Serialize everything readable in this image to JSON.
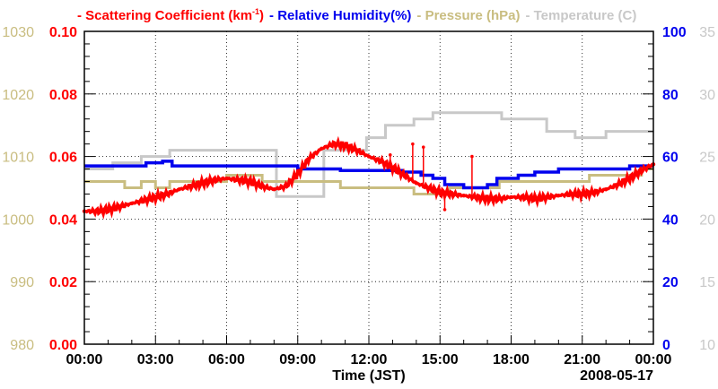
{
  "chart_data": {
    "type": "line",
    "title": "",
    "xlabel": "Time (JST)",
    "date_label": "2008-05-17",
    "x_ticks": [
      "00:00",
      "03:00",
      "06:00",
      "09:00",
      "12:00",
      "15:00",
      "18:00",
      "21:00",
      "00:00"
    ],
    "xlim_hours": [
      0,
      24
    ],
    "grid": true,
    "legend_position": "top",
    "axes": {
      "pressure": {
        "label": "Pressure (hPa)",
        "side": "left-outer",
        "range": [
          980,
          1030
        ],
        "ticks": [
          "980",
          "990",
          "1000",
          "1010",
          "1020",
          "1030"
        ],
        "color": "#c9bd80"
      },
      "scattering": {
        "label": "Scattering Coefficient (km-1)",
        "side": "left-inner",
        "range": [
          0,
          0.1
        ],
        "ticks": [
          "0.00",
          "0.02",
          "0.04",
          "0.06",
          "0.08",
          "0.10"
        ],
        "color": "#ff0000"
      },
      "humidity": {
        "label": "Relative Humidity(%)",
        "side": "right-inner",
        "range": [
          0,
          100
        ],
        "ticks": [
          "0",
          "20",
          "40",
          "60",
          "80",
          "100"
        ],
        "color": "#0000ee"
      },
      "temperature": {
        "label": "Temperature (C)",
        "side": "right-outer",
        "range": [
          10,
          35
        ],
        "ticks": [
          "10",
          "15",
          "20",
          "25",
          "30",
          "35"
        ],
        "color": "#c8c8c8"
      }
    },
    "series": [
      {
        "name": "Scattering Coefficient",
        "axis": "scattering",
        "color": "#ff0000",
        "style": "line-markers",
        "x": [
          0,
          0.5,
          1,
          1.5,
          2,
          2.5,
          3,
          3.5,
          4,
          4.5,
          5,
          5.5,
          6,
          6.5,
          7,
          7.5,
          8,
          8.5,
          9,
          9.5,
          10,
          10.5,
          11,
          11.5,
          12,
          12.5,
          13,
          13.5,
          14,
          14.5,
          15,
          15.5,
          16,
          16.5,
          17,
          17.5,
          18,
          18.5,
          19,
          19.5,
          20,
          20.5,
          21,
          21.5,
          22,
          22.5,
          23,
          23.5,
          24
        ],
        "values": [
          0.0425,
          0.0425,
          0.043,
          0.044,
          0.045,
          0.046,
          0.047,
          0.048,
          0.0495,
          0.0505,
          0.0515,
          0.0525,
          0.053,
          0.0525,
          0.052,
          0.0505,
          0.0495,
          0.0505,
          0.0545,
          0.0595,
          0.0625,
          0.064,
          0.0635,
          0.062,
          0.06,
          0.0585,
          0.0565,
          0.054,
          0.0515,
          0.05,
          0.0485,
          0.048,
          0.0475,
          0.047,
          0.0465,
          0.0465,
          0.047,
          0.047,
          0.0465,
          0.047,
          0.0475,
          0.048,
          0.048,
          0.0485,
          0.0495,
          0.051,
          0.053,
          0.0555,
          0.0575
        ],
        "spikes": [
          {
            "x": 12.9,
            "value": 0.0605
          },
          {
            "x": 13.85,
            "value": 0.064
          },
          {
            "x": 14.3,
            "value": 0.063
          },
          {
            "x": 16.35,
            "value": 0.06
          },
          {
            "x": 15.2,
            "value": 0.043
          }
        ]
      },
      {
        "name": "Relative Humidity",
        "axis": "humidity",
        "color": "#0000ee",
        "style": "step",
        "x": [
          0,
          2.6,
          3.3,
          3.7,
          9.0,
          10.8,
          12.6,
          13.4,
          14.2,
          14.7,
          15.2,
          16.0,
          17.0,
          17.4,
          18.3,
          19.0,
          20.0,
          23.0,
          24
        ],
        "values": [
          57,
          58,
          58.5,
          57,
          56,
          55.5,
          55.5,
          55,
          54,
          53,
          51,
          50,
          51,
          53,
          54,
          55,
          56,
          57,
          57
        ]
      },
      {
        "name": "Pressure",
        "axis": "pressure",
        "color": "#c9bd80",
        "style": "step",
        "x": [
          0,
          1.2,
          1.7,
          2.4,
          3.0,
          3.6,
          4.5,
          6.0,
          7.5,
          8.7,
          10.8,
          11.4,
          12.2,
          13.2,
          13.9,
          14.8,
          15.4,
          16.6,
          17.5,
          18.3,
          19.8,
          21.3,
          22.1,
          23.5,
          24
        ],
        "values": [
          1006,
          1006,
          1005,
          1006,
          1005,
          1006,
          1006,
          1007,
          1006,
          1006,
          1005,
          1005,
          1005,
          1005,
          1004,
          1004,
          1005,
          1005,
          1006,
          1006,
          1006,
          1007,
          1007,
          1008,
          1008
        ]
      },
      {
        "name": "Temperature",
        "axis": "temperature",
        "color": "#c8c8c8",
        "style": "step",
        "x": [
          0,
          1.2,
          2.4,
          3.6,
          8.1,
          10.1,
          11.0,
          11.9,
          12.7,
          13.9,
          14.7,
          15.6,
          17.6,
          19.5,
          20.7,
          22.0,
          24
        ],
        "values": [
          24,
          24.5,
          25,
          25.5,
          21.8,
          25.5,
          25.5,
          26.5,
          27.5,
          28,
          28.5,
          28.5,
          28,
          27,
          26.5,
          27,
          27
        ]
      }
    ]
  },
  "legend": {
    "scattering": "- Scattering Coefficient (km",
    "scattering_sup": "-1",
    "scattering_close": ")",
    "humidity": "- Relative Humidity(%)",
    "pressure": "- Pressure (hPa)",
    "temperature": "- Temperature (C)"
  }
}
